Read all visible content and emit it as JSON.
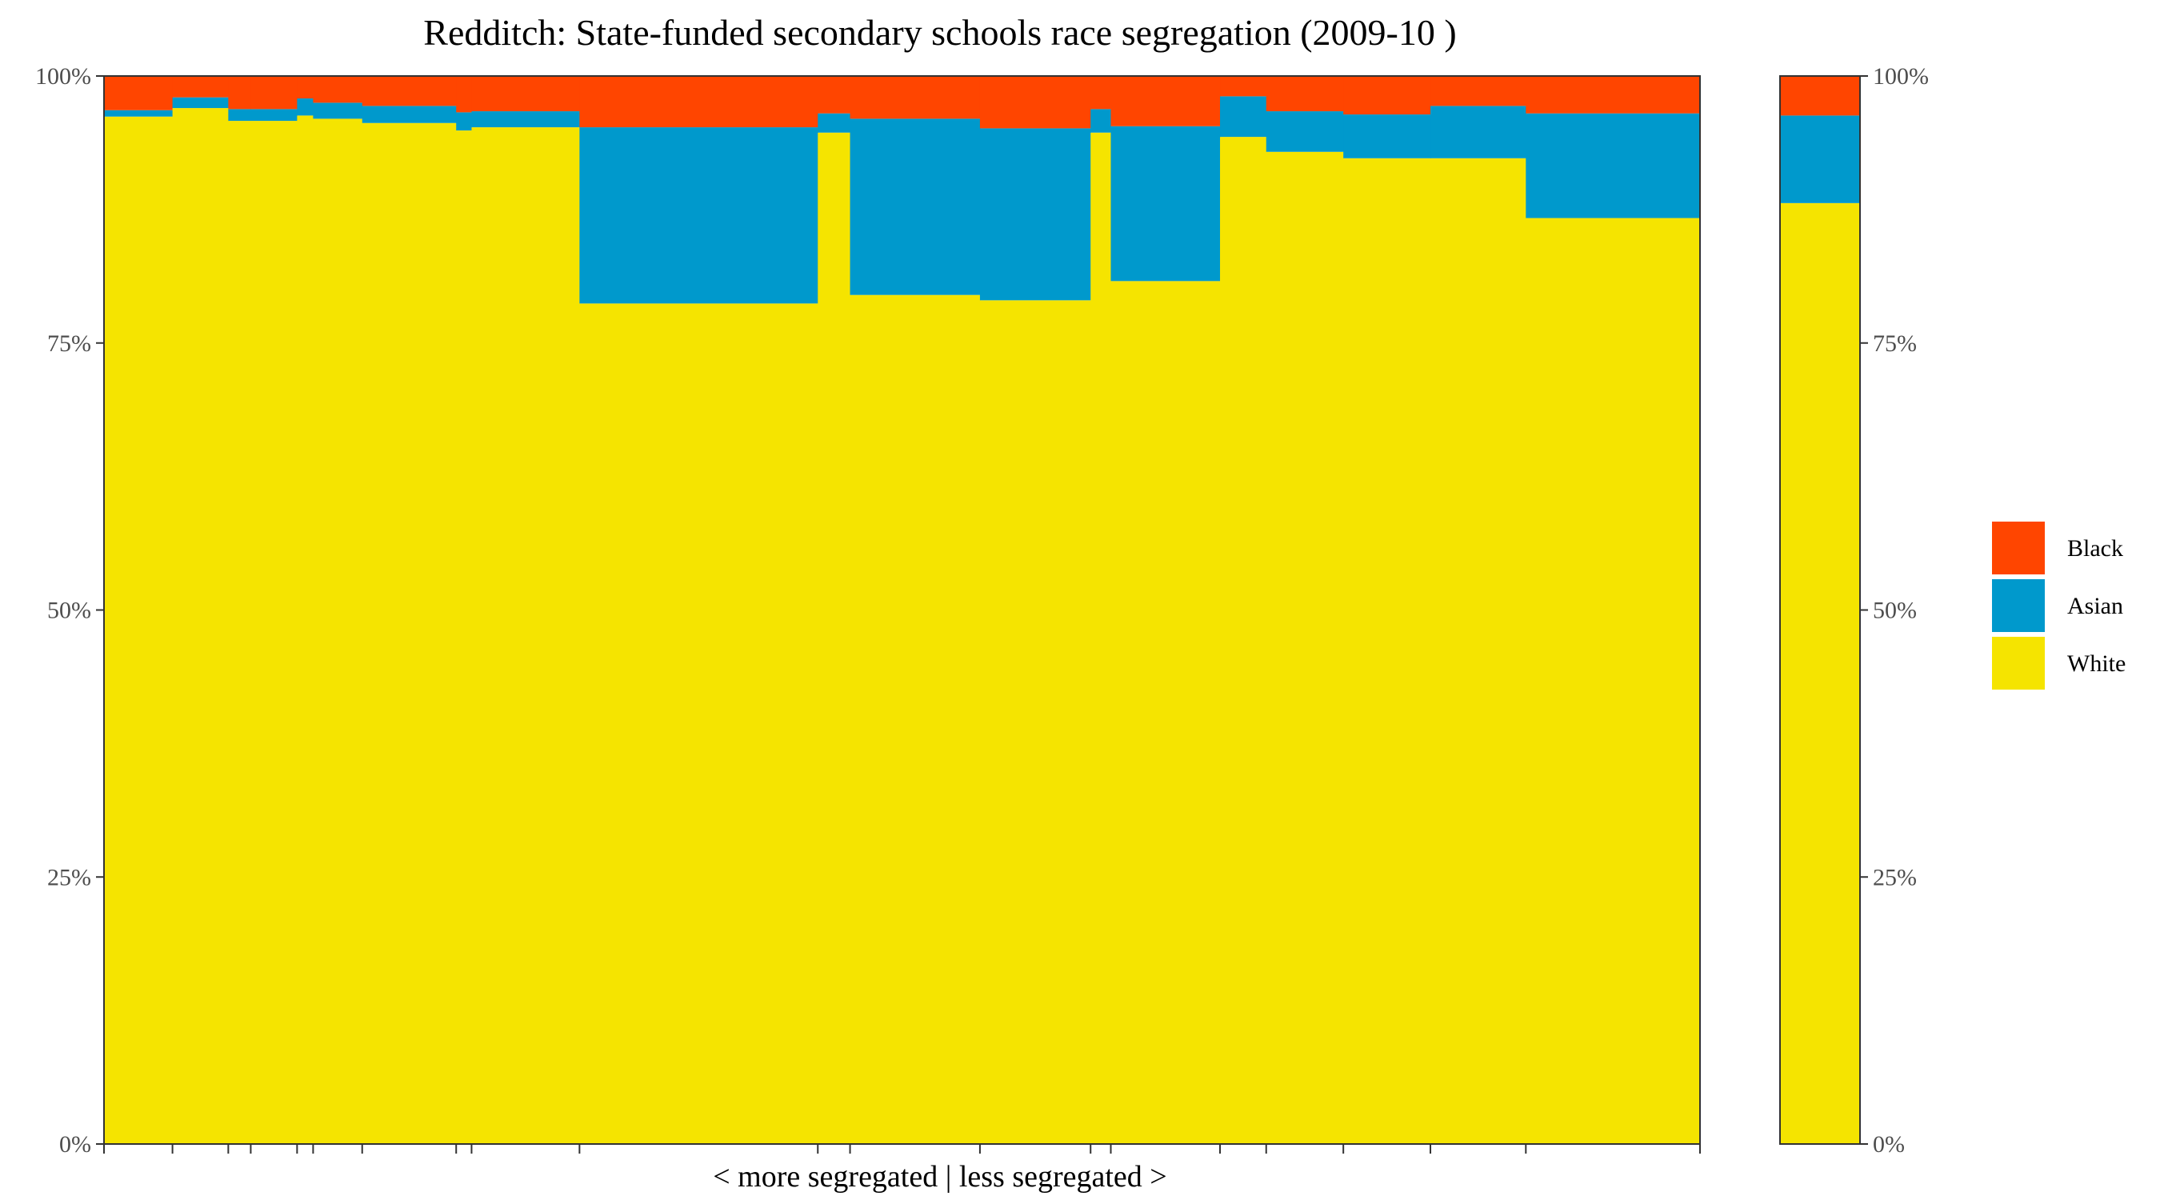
{
  "chart_data": {
    "type": "bar",
    "subtype": "stacked-variable-width (mosaic)",
    "title": "Redditch: State-funded secondary schools race segregation (2009-10 )",
    "xlabel": "< more segregated | less segregated >",
    "ylabel": "",
    "ylim": [
      0,
      100
    ],
    "y_ticks": [
      "0%",
      "25%",
      "50%",
      "75%",
      "100%"
    ],
    "legend": {
      "position": "right",
      "entries": [
        "Black",
        "Asian",
        "White"
      ]
    },
    "colors": {
      "Black": "#ff4500",
      "Asian": "#0099cc",
      "White": "#f5e400"
    },
    "stack_order_bottom_to_top": [
      "White",
      "Asian",
      "Black"
    ],
    "schools": [
      {
        "share_of_pupils": 0.0427,
        "White": 96.2,
        "Asian": 0.6,
        "Black": 3.2
      },
      {
        "share_of_pupils": 0.0348,
        "White": 97.0,
        "Asian": 1.0,
        "Black": 2.0
      },
      {
        "share_of_pupils": 0.014,
        "White": 95.8,
        "Asian": 1.1,
        "Black": 3.1
      },
      {
        "share_of_pupils": 0.0289,
        "White": 95.8,
        "Asian": 1.1,
        "Black": 3.1
      },
      {
        "share_of_pupils": 0.01,
        "White": 96.3,
        "Asian": 1.6,
        "Black": 2.1
      },
      {
        "share_of_pupils": 0.0306,
        "White": 96.0,
        "Asian": 1.5,
        "Black": 2.5
      },
      {
        "share_of_pupils": 0.0586,
        "White": 95.6,
        "Asian": 1.6,
        "Black": 2.8
      },
      {
        "share_of_pupils": 0.0096,
        "White": 94.9,
        "Asian": 1.7,
        "Black": 3.4
      },
      {
        "share_of_pupils": 0.0673,
        "White": 95.2,
        "Asian": 1.5,
        "Black": 3.3
      },
      {
        "share_of_pupils": 0.1486,
        "White": 78.7,
        "Asian": 16.5,
        "Black": 4.8
      },
      {
        "share_of_pupils": 0.0201,
        "White": 94.7,
        "Asian": 1.8,
        "Black": 3.5
      },
      {
        "share_of_pupils": 0.081,
        "White": 79.5,
        "Asian": 16.5,
        "Black": 4.0
      },
      {
        "share_of_pupils": 0.069,
        "White": 79.0,
        "Asian": 16.1,
        "Black": 4.9
      },
      {
        "share_of_pupils": 0.0126,
        "White": 94.7,
        "Asian": 2.2,
        "Black": 3.1
      },
      {
        "share_of_pupils": 0.0681,
        "White": 80.8,
        "Asian": 14.5,
        "Black": 4.7
      },
      {
        "share_of_pupils": 0.0288,
        "White": 94.3,
        "Asian": 3.8,
        "Black": 1.9
      },
      {
        "share_of_pupils": 0.0481,
        "White": 92.9,
        "Asian": 3.8,
        "Black": 3.3
      },
      {
        "share_of_pupils": 0.0543,
        "White": 92.3,
        "Asian": 4.1,
        "Black": 3.6
      },
      {
        "share_of_pupils": 0.0595,
        "White": 92.3,
        "Asian": 4.9,
        "Black": 2.8
      },
      {
        "share_of_pupils": 0.1086,
        "White": 86.7,
        "Asian": 9.8,
        "Black": 3.5
      }
    ],
    "overall": {
      "White": 88.1,
      "Asian": 8.2,
      "Black": 3.7
    }
  }
}
